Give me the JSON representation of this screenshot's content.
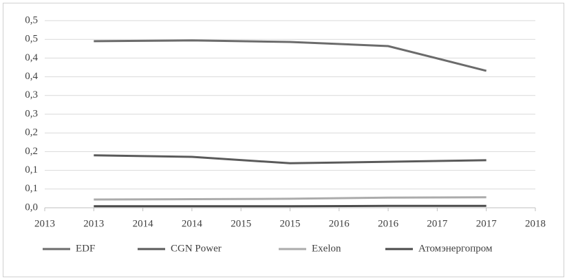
{
  "chart_data": {
    "type": "line",
    "x": [
      2013,
      2014,
      2015,
      2016,
      2017
    ],
    "series": [
      {
        "name": "EDF",
        "color": "#6b6b6b",
        "values": [
          0.445,
          0.447,
          0.443,
          0.432,
          0.366
        ]
      },
      {
        "name": "CGN Power",
        "color": "#5a5a5a",
        "values": [
          0.14,
          0.136,
          0.119,
          0.123,
          0.127
        ]
      },
      {
        "name": "Exelon",
        "color": "#ababab",
        "values": [
          0.022,
          0.023,
          0.024,
          0.027,
          0.028
        ]
      },
      {
        "name": "Атомэнергопром",
        "color": "#4a4a4a",
        "values": [
          0.004,
          0.004,
          0.004,
          0.005,
          0.005
        ]
      }
    ],
    "xlim": [
      2012.5,
      2017.5
    ],
    "xticks": [
      {
        "value": 2012.5,
        "label": "2013"
      },
      2013,
      {
        "value": 2013.5,
        "label": "2014"
      },
      2014,
      {
        "value": 2014.5,
        "label": "2015"
      },
      2015,
      {
        "value": 2015.5,
        "label": "2016"
      },
      2016,
      {
        "value": 2016.5,
        "label": "2017"
      },
      2017,
      {
        "value": 2017.5,
        "label": "2018"
      }
    ],
    "ylim": [
      0,
      0.5
    ],
    "yticks": [
      {
        "value": 0,
        "label": "0,0"
      },
      {
        "value": 0.05,
        "label": "0,1"
      },
      {
        "value": 0.1,
        "label": "0,1"
      },
      {
        "value": 0.15,
        "label": "0,2"
      },
      {
        "value": 0.2,
        "label": "0,2"
      },
      {
        "value": 0.25,
        "label": "0,3"
      },
      {
        "value": 0.3,
        "label": "0,3"
      },
      {
        "value": 0.35,
        "label": "0,4"
      },
      {
        "value": 0.4,
        "label": "0,4"
      },
      {
        "value": 0.45,
        "label": "0,5"
      },
      {
        "value": 0.5,
        "label": "0,5"
      }
    ],
    "grid": true,
    "legend": "bottom"
  }
}
